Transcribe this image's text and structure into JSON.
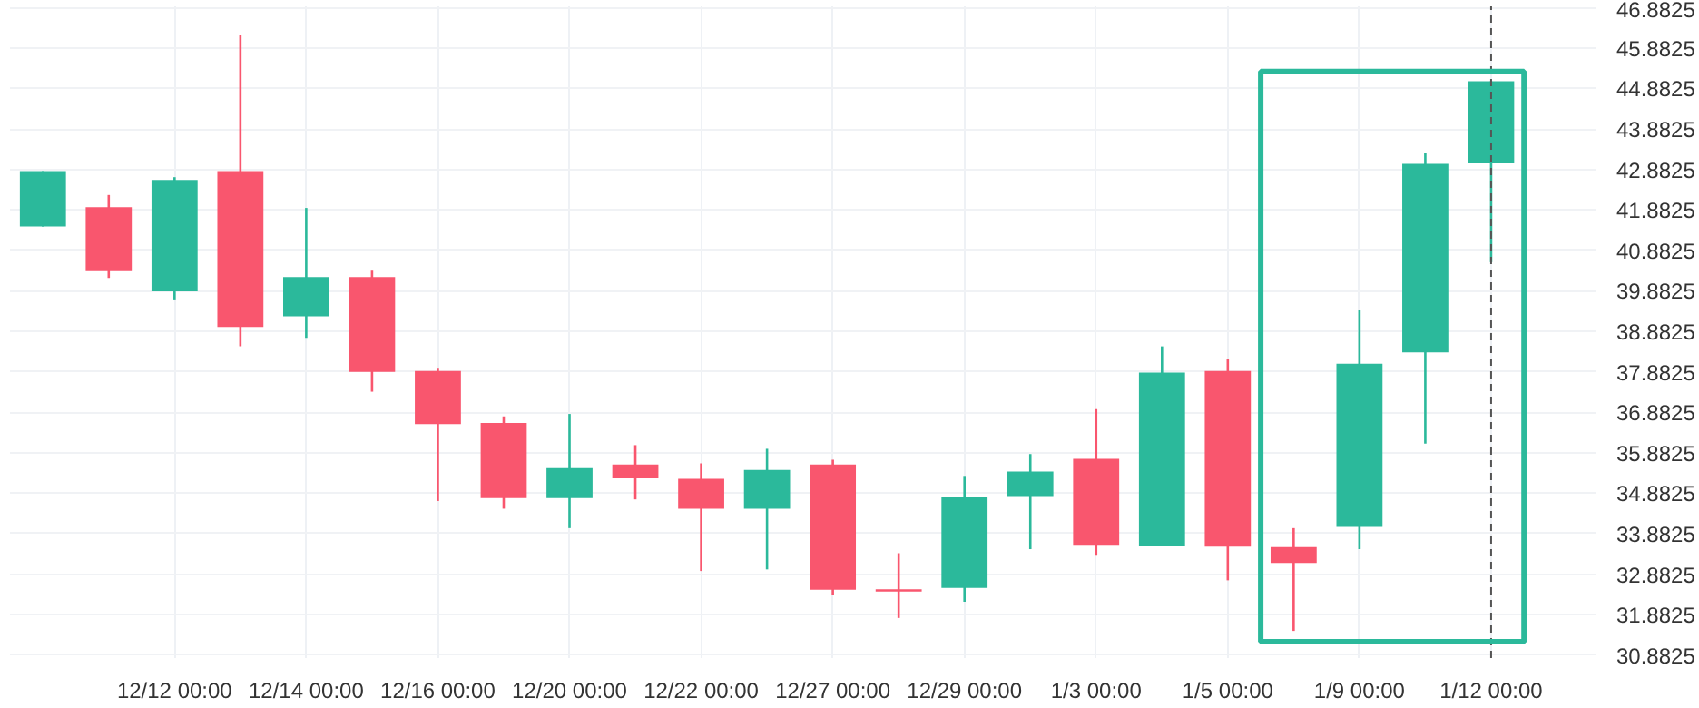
{
  "chart_data": {
    "type": "candlestick",
    "categories": [
      null,
      null,
      "12/12 00:00",
      null,
      "12/14 00:00",
      null,
      "12/16 00:00",
      null,
      "12/20 00:00",
      null,
      "12/22 00:00",
      null,
      "12/27 00:00",
      null,
      "12/29 00:00",
      null,
      "1/3 00:00",
      null,
      "1/5 00:00",
      null,
      "1/9 00:00",
      null,
      "1/12 00:00"
    ],
    "ohlc": [
      [
        41.47,
        42.84,
        41.47,
        42.84
      ],
      [
        41.95,
        42.25,
        40.2,
        40.37
      ],
      [
        39.87,
        42.69,
        39.67,
        42.62
      ],
      [
        42.84,
        46.19,
        38.51,
        38.99
      ],
      [
        39.25,
        41.93,
        38.72,
        40.22
      ],
      [
        40.22,
        40.38,
        37.39,
        37.88
      ],
      [
        37.9,
        37.98,
        34.69,
        36.59
      ],
      [
        36.62,
        36.78,
        34.5,
        34.76
      ],
      [
        34.76,
        36.84,
        34.02,
        35.5
      ],
      [
        35.59,
        36.07,
        34.73,
        35.25
      ],
      [
        35.24,
        35.62,
        32.96,
        34.5
      ],
      [
        34.5,
        35.98,
        33.0,
        35.46
      ],
      [
        35.59,
        35.71,
        32.36,
        32.5
      ],
      [
        32.48,
        33.4,
        31.8,
        32.47
      ],
      [
        32.54,
        35.31,
        32.2,
        34.79
      ],
      [
        34.81,
        35.85,
        33.5,
        35.42
      ],
      [
        35.73,
        36.96,
        33.36,
        33.61
      ],
      [
        33.59,
        38.51,
        33.59,
        37.86
      ],
      [
        37.9,
        38.2,
        32.73,
        33.56
      ],
      [
        33.55,
        34.02,
        31.48,
        33.16
      ],
      [
        34.05,
        39.4,
        33.5,
        38.08
      ],
      [
        38.36,
        43.28,
        36.11,
        43.02
      ],
      [
        43.03,
        45.06,
        40.59,
        45.06
      ]
    ],
    "colors": [
      "#2bb99b",
      "#f9566e",
      "#2bb99b",
      "#f9566e",
      "#2bb99b",
      "#f9566e",
      "#f9566e",
      "#f9566e",
      "#2bb99b",
      "#f9566e",
      "#f9566e",
      "#2bb99b",
      "#f9566e",
      "#f9566e",
      "#2bb99b",
      "#2bb99b",
      "#f9566e",
      "#2bb99b",
      "#f9566e",
      "#f9566e",
      "#2bb99b",
      "#2bb99b",
      "#2bb99b"
    ],
    "ylim": [
      30.81,
      46.91
    ],
    "yticks": [
      30.8825,
      31.8825,
      32.8825,
      33.8825,
      34.8825,
      35.8825,
      36.8825,
      37.8825,
      38.8825,
      39.8825,
      40.8825,
      41.8825,
      42.8825,
      43.8825,
      44.8825,
      45.8825,
      46.8825
    ],
    "grid": true,
    "ref_lines": [
      {
        "axis": "x",
        "value": "1/12 00:00",
        "color": "#555555",
        "line_style": "dashed"
      }
    ]
  }
}
